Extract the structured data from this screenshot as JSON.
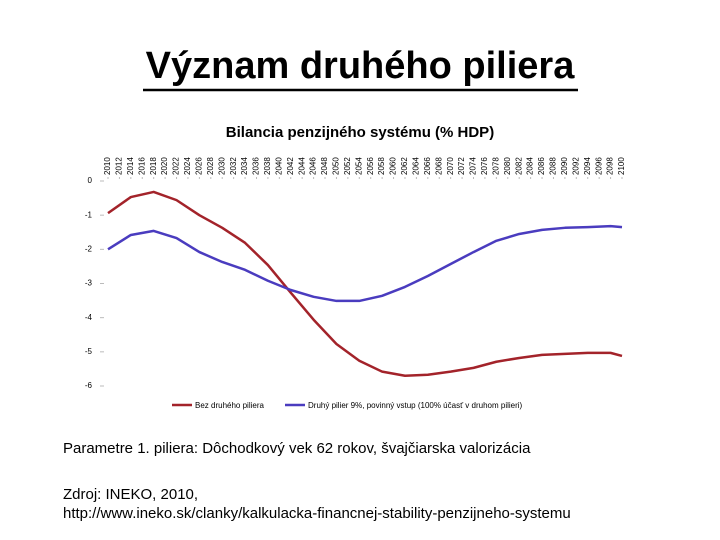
{
  "slide": {
    "title": "Význam druhého piliera",
    "notes": [
      "Parametre 1. piliera: Dôchodkový vek 62 rokov, švajčiarska valorizácia",
      "Zdroj: INEKO, 2010,",
      "http://www.ineko.sk/clanky/kalkulacka-financnej-stability-penzijneho-systemu"
    ]
  },
  "chart_data": {
    "type": "line",
    "title": "Bilancia penzijného systému (% HDP)",
    "x": [
      2010,
      2014,
      2018,
      2022,
      2026,
      2030,
      2034,
      2038,
      2042,
      2046,
      2050,
      2054,
      2058,
      2062,
      2066,
      2070,
      2074,
      2078,
      2082,
      2086,
      2090,
      2094,
      2098,
      2100
    ],
    "series": [
      {
        "name": "Bez druhého piliera",
        "color": "#a3232a",
        "values": [
          -0.94,
          -0.47,
          -0.32,
          -0.56,
          -1.0,
          -1.37,
          -1.81,
          -2.46,
          -3.27,
          -4.06,
          -4.77,
          -5.26,
          -5.58,
          -5.7,
          -5.67,
          -5.58,
          -5.47,
          -5.29,
          -5.18,
          -5.09,
          -5.06,
          -5.03,
          -5.03,
          -5.12
        ]
      },
      {
        "name": "Druhý pilier 9%, povinný vstup (100% účasť v druhom pilieri)",
        "color": "#4a3cbf",
        "values": [
          -2.0,
          -1.58,
          -1.46,
          -1.67,
          -2.08,
          -2.37,
          -2.6,
          -2.92,
          -3.19,
          -3.39,
          -3.51,
          -3.51,
          -3.36,
          -3.1,
          -2.78,
          -2.43,
          -2.08,
          -1.75,
          -1.55,
          -1.43,
          -1.37,
          -1.35,
          -1.32,
          -1.35
        ]
      }
    ],
    "xlim": [
      2010,
      2100
    ],
    "xticks": [
      2010,
      2012,
      2014,
      2016,
      2018,
      2020,
      2022,
      2024,
      2026,
      2028,
      2030,
      2032,
      2034,
      2036,
      2038,
      2040,
      2042,
      2044,
      2046,
      2048,
      2050,
      2052,
      2054,
      2056,
      2058,
      2060,
      2062,
      2064,
      2066,
      2068,
      2070,
      2072,
      2074,
      2076,
      2078,
      2080,
      2082,
      2084,
      2086,
      2088,
      2090,
      2092,
      2094,
      2096,
      2098,
      2100
    ],
    "ylim": [
      -6,
      0
    ],
    "yticks": [
      0,
      -1,
      -2,
      -3,
      -4,
      -5,
      -6
    ],
    "grid": false,
    "legend": "bottom"
  }
}
